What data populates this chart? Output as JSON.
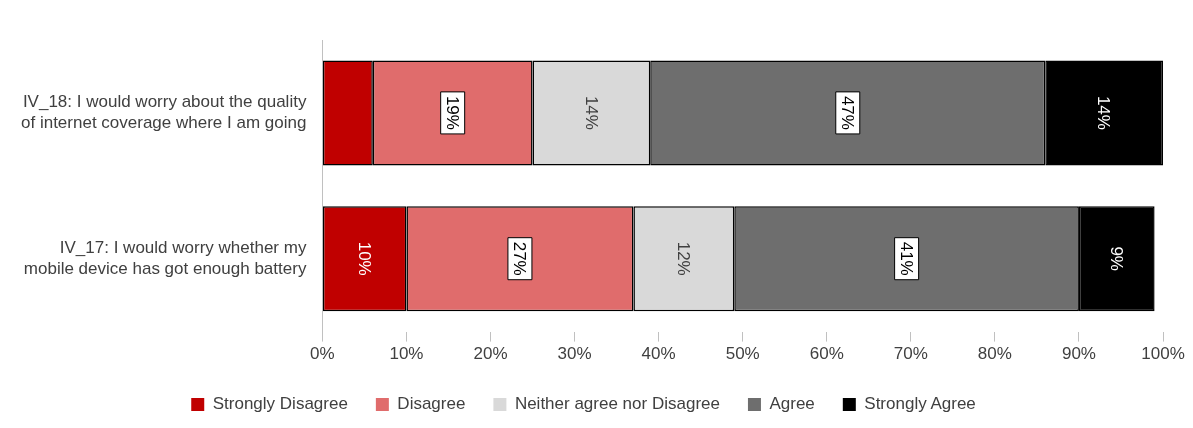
{
  "chart_data": {
    "type": "bar",
    "orientation": "horizontal",
    "stacked": true,
    "categories": [
      "IV_18: I would worry about the quality of internet coverage where I am going",
      "IV_17: I would worry whether my mobile device has got enough battery"
    ],
    "series": [
      {
        "name": "Strongly Disagree",
        "color": "#c00000",
        "values": [
          6,
          10
        ],
        "value_labels": [
          null,
          "10%"
        ]
      },
      {
        "name": "Disagree",
        "color": "#e06c6c",
        "values": [
          19,
          27
        ],
        "value_labels": [
          "19%",
          "27%"
        ]
      },
      {
        "name": "Neither agree nor Disagree",
        "color": "#d9d9d9",
        "values": [
          14,
          12
        ],
        "value_labels": [
          "14%",
          "12%"
        ]
      },
      {
        "name": "Agree",
        "color": "#6e6e6e",
        "values": [
          47,
          41
        ],
        "value_labels": [
          "47%",
          "41%"
        ]
      },
      {
        "name": "Strongly Agree",
        "color": "#000000",
        "values": [
          14,
          9
        ],
        "value_labels": [
          "14%",
          "9%"
        ]
      }
    ],
    "xlim": [
      0,
      100
    ],
    "xticks": [
      {
        "value": 0,
        "label": "0%"
      },
      {
        "value": 10,
        "label": "10%"
      },
      {
        "value": 20,
        "label": "20%"
      },
      {
        "value": 30,
        "label": "30%"
      },
      {
        "value": 40,
        "label": "40%"
      },
      {
        "value": 50,
        "label": "50%"
      },
      {
        "value": 60,
        "label": "60%"
      },
      {
        "value": 70,
        "label": "70%"
      },
      {
        "value": 80,
        "label": "80%"
      },
      {
        "value": 90,
        "label": "90%"
      },
      {
        "value": 100,
        "label": "100%"
      }
    ],
    "grid": false,
    "legend": "bottom"
  }
}
